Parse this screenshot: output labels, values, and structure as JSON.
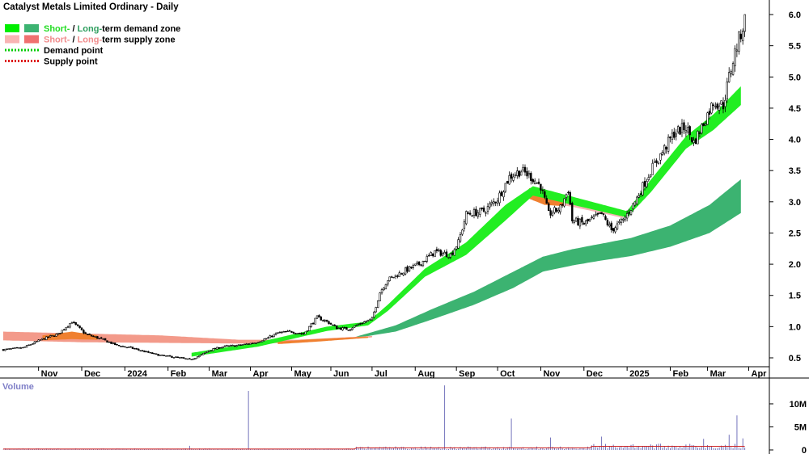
{
  "chart_data": [
    {
      "type": "candlestick",
      "title": "Catalyst Metals Limited Ordinary - Daily",
      "legend": {
        "position": "top-left",
        "items": [
          {
            "parts": [
              {
                "text": "Short-",
                "color": "#22dd22"
              },
              {
                "text": " / ",
                "color": "#000000"
              },
              {
                "text": "Long-",
                "color": "#2e9e5e"
              },
              {
                "text": "term demand zone",
                "color": "#000000"
              }
            ],
            "swatches": [
              "#00ee00",
              "#3cb371"
            ],
            "kind": "box"
          },
          {
            "parts": [
              {
                "text": "Short-",
                "color": "#f08c8c"
              },
              {
                "text": " / ",
                "color": "#000000"
              },
              {
                "text": "Long-",
                "color": "#f08c8c"
              },
              {
                "text": "term supply zone",
                "color": "#000000"
              }
            ],
            "swatches": [
              "#f8b4b4",
              "#f07070"
            ],
            "kind": "box"
          },
          {
            "parts": [
              {
                "text": "Demand point",
                "color": "#000000"
              }
            ],
            "swatches": [
              "#00cc00"
            ],
            "kind": "dots"
          },
          {
            "parts": [
              {
                "text": "Supply point",
                "color": "#000000"
              }
            ],
            "swatches": [
              "#dd0000"
            ],
            "kind": "dots"
          }
        ]
      },
      "x_ticks": [
        "Nov",
        "Dec",
        "2024",
        "Feb",
        "Mar",
        "Apr",
        "May",
        "Jun",
        "Jul",
        "Aug",
        "Sep",
        "Oct",
        "Nov",
        "Dec",
        "2025",
        "Feb",
        "Mar",
        "Apr"
      ],
      "x_tick_day_index": [
        18,
        40,
        62,
        84,
        105,
        126,
        147,
        167,
        188,
        210,
        231,
        252,
        274,
        296,
        318,
        340,
        359,
        380
      ],
      "y_ticks": [
        "0.5",
        "1.0",
        "1.5",
        "2.0",
        "2.5",
        "3.0",
        "3.5",
        "4.0",
        "4.5",
        "5.0",
        "5.5",
        "6.0"
      ],
      "y_tick_values": [
        0.5,
        1.0,
        1.5,
        2.0,
        2.5,
        3.0,
        3.5,
        4.0,
        4.5,
        5.0,
        5.5,
        6.0
      ],
      "ylim": [
        0.3,
        6.2
      ],
      "grid": false,
      "price_keyframes": [
        [
          0,
          0.63
        ],
        [
          10,
          0.66
        ],
        [
          20,
          0.8
        ],
        [
          28,
          0.88
        ],
        [
          35,
          1.08
        ],
        [
          42,
          0.88
        ],
        [
          50,
          0.8
        ],
        [
          58,
          0.7
        ],
        [
          65,
          0.66
        ],
        [
          72,
          0.6
        ],
        [
          80,
          0.54
        ],
        [
          90,
          0.5
        ],
        [
          95,
          0.47
        ],
        [
          100,
          0.53
        ],
        [
          105,
          0.62
        ],
        [
          112,
          0.68
        ],
        [
          120,
          0.7
        ],
        [
          128,
          0.74
        ],
        [
          135,
          0.82
        ],
        [
          140,
          0.9
        ],
        [
          147,
          0.92
        ],
        [
          153,
          0.88
        ],
        [
          160,
          1.15
        ],
        [
          165,
          1.08
        ],
        [
          170,
          0.98
        ],
        [
          176,
          0.96
        ],
        [
          182,
          1.05
        ],
        [
          188,
          1.12
        ],
        [
          192,
          1.55
        ],
        [
          196,
          1.75
        ],
        [
          205,
          1.9
        ],
        [
          212,
          2.0
        ],
        [
          220,
          2.2
        ],
        [
          228,
          2.15
        ],
        [
          232,
          2.35
        ],
        [
          236,
          2.8
        ],
        [
          245,
          2.85
        ],
        [
          252,
          3.05
        ],
        [
          258,
          3.4
        ],
        [
          264,
          3.5
        ],
        [
          269,
          3.4
        ],
        [
          274,
          3.25
        ],
        [
          278,
          2.8
        ],
        [
          284,
          2.9
        ],
        [
          288,
          3.2
        ],
        [
          290,
          2.7
        ],
        [
          296,
          2.65
        ],
        [
          305,
          2.8
        ],
        [
          310,
          2.55
        ],
        [
          316,
          2.7
        ],
        [
          322,
          3.0
        ],
        [
          330,
          3.5
        ],
        [
          336,
          3.8
        ],
        [
          342,
          4.1
        ],
        [
          348,
          4.2
        ],
        [
          352,
          3.95
        ],
        [
          356,
          4.2
        ],
        [
          362,
          4.6
        ],
        [
          367,
          4.55
        ],
        [
          370,
          5.0
        ],
        [
          373,
          5.4
        ],
        [
          376,
          5.7
        ],
        [
          378,
          5.92
        ]
      ],
      "demand_zone_short": [
        [
          96,
          0.52,
          0.58
        ],
        [
          130,
          0.68,
          0.75
        ],
        [
          165,
          0.93,
          1.0
        ],
        [
          186,
          1.02,
          1.08
        ],
        [
          196,
          1.25,
          1.35
        ],
        [
          215,
          1.8,
          1.93
        ],
        [
          236,
          2.15,
          2.35
        ],
        [
          256,
          2.7,
          2.95
        ],
        [
          270,
          3.1,
          3.25
        ],
        [
          318,
          2.75,
          2.85
        ],
        [
          330,
          3.15,
          3.35
        ],
        [
          348,
          3.85,
          4.05
        ],
        [
          362,
          4.15,
          4.4
        ],
        [
          376,
          4.55,
          4.85
        ]
      ],
      "demand_zone_long": [
        [
          180,
          0.82,
          0.84
        ],
        [
          200,
          0.92,
          1.02
        ],
        [
          220,
          1.13,
          1.3
        ],
        [
          240,
          1.35,
          1.56
        ],
        [
          260,
          1.62,
          1.88
        ],
        [
          275,
          1.88,
          2.12
        ],
        [
          290,
          1.98,
          2.24
        ],
        [
          305,
          2.06,
          2.33
        ],
        [
          320,
          2.13,
          2.42
        ],
        [
          340,
          2.28,
          2.62
        ],
        [
          360,
          2.5,
          2.95
        ],
        [
          376,
          2.82,
          3.36
        ]
      ],
      "supply_zone_long": [
        [
          0,
          0.78,
          0.92
        ],
        [
          40,
          0.75,
          0.89
        ],
        [
          80,
          0.74,
          0.86
        ],
        [
          120,
          0.73,
          0.79
        ],
        [
          150,
          0.74,
          0.79
        ],
        [
          188,
          0.83,
          0.85
        ]
      ],
      "supply_zone_short": [
        [
          270,
          3.02,
          3.2
        ],
        [
          290,
          2.92,
          3.06
        ],
        [
          305,
          2.82,
          2.92
        ],
        [
          316,
          2.74,
          2.84
        ]
      ],
      "volume": {
        "label": "Volume",
        "y_ticks": [
          "0",
          "5M",
          "10M"
        ],
        "y_tick_values": [
          0,
          5000000,
          10000000
        ],
        "ylim": [
          0,
          13500000
        ],
        "spikes": [
          [
            95,
            900000
          ],
          [
            125,
            12800000
          ],
          [
            225,
            14000000
          ],
          [
            259,
            6800000
          ],
          [
            279,
            2700000
          ],
          [
            305,
            2900000
          ],
          [
            357,
            2400000
          ],
          [
            374,
            7500000
          ],
          [
            370,
            3300000
          ],
          [
            377,
            2500000
          ]
        ]
      }
    }
  ]
}
